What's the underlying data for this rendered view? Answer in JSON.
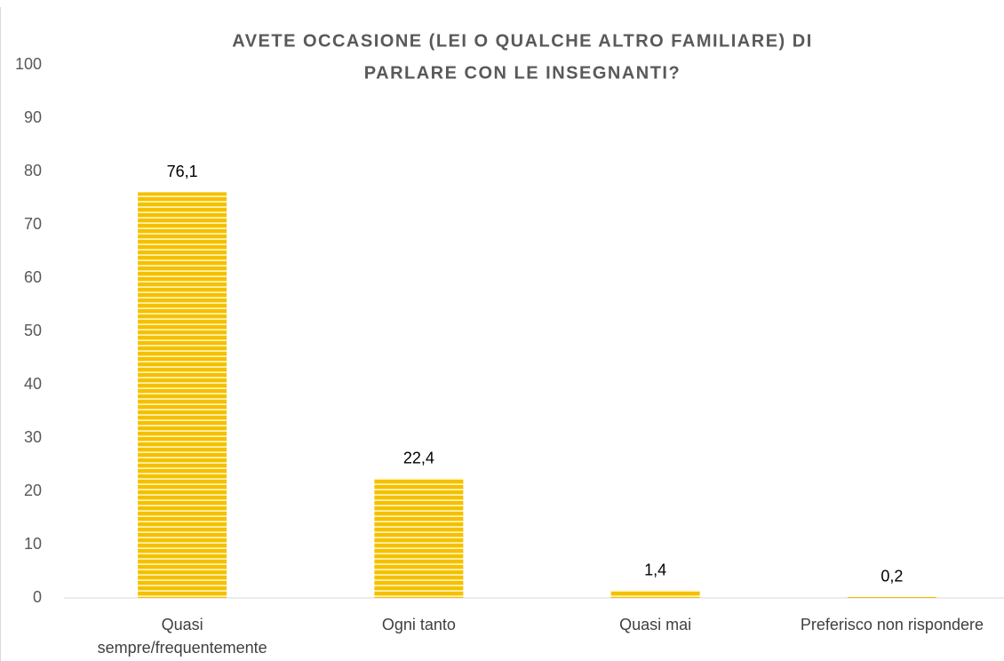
{
  "chart_data": {
    "type": "bar",
    "title": [
      "AVETE OCCASIONE (LEI O QUALCHE ALTRO FAMILIARE) DI",
      "PARLARE CON LE INSEGNANTI?"
    ],
    "categories": [
      "Quasi sempre/frequentemente",
      "Ogni tanto",
      "Quasi mai",
      "Preferisco non rispondere"
    ],
    "values": [
      76.1,
      22.4,
      1.4,
      0.2
    ],
    "value_labels": [
      "76,1",
      "22,4",
      "1,4",
      "0,2"
    ],
    "color": "#f5c000",
    "ylim": [
      0,
      100
    ],
    "yticks": [
      0,
      10,
      20,
      30,
      40,
      50,
      60,
      70,
      80,
      90,
      100
    ],
    "grid": false
  }
}
